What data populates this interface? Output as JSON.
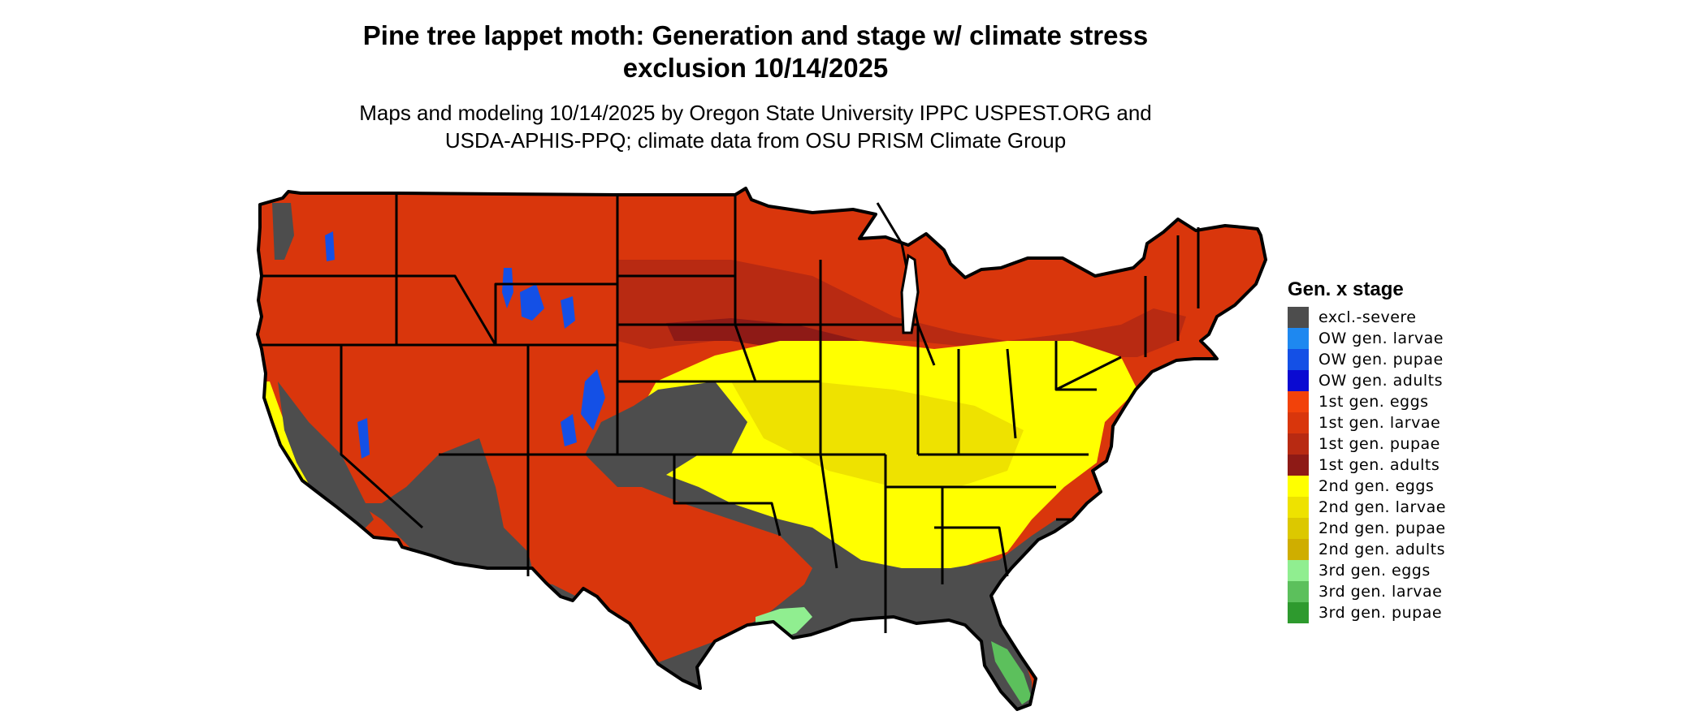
{
  "title": {
    "line1": "Pine tree lappet moth: Generation and stage w/ climate stress",
    "line2": "exclusion 10/14/2025"
  },
  "subtitle": {
    "line1": "Maps and modeling 10/14/2025 by Oregon State University IPPC USPEST.ORG and",
    "line2": "USDA-APHIS-PPQ; climate data from OSU PRISM Climate Group"
  },
  "legend": {
    "title": "Gen. x stage",
    "items": [
      {
        "label": "excl.-severe",
        "color": "#4d4d4d"
      },
      {
        "label": "OW gen. larvae",
        "color": "#1e88f0"
      },
      {
        "label": "OW gen. pupae",
        "color": "#1450e6"
      },
      {
        "label": "OW gen. adults",
        "color": "#0a0ad2"
      },
      {
        "label": "1st gen. eggs",
        "color": "#f2420a"
      },
      {
        "label": "1st gen. larvae",
        "color": "#d9360c"
      },
      {
        "label": "1st gen. pupae",
        "color": "#b82a12"
      },
      {
        "label": "1st gen. adults",
        "color": "#8e1a16"
      },
      {
        "label": "2nd gen. eggs",
        "color": "#ffff00"
      },
      {
        "label": "2nd gen. larvae",
        "color": "#eee200"
      },
      {
        "label": "2nd gen. pupae",
        "color": "#dcc800"
      },
      {
        "label": "2nd gen. adults",
        "color": "#cfae00"
      },
      {
        "label": "3rd gen. eggs",
        "color": "#90ee90"
      },
      {
        "label": "3rd gen. larvae",
        "color": "#5cc05c"
      },
      {
        "label": "3rd gen. pupae",
        "color": "#2e9a2e"
      }
    ]
  },
  "map": {
    "region": "Contiguous United States",
    "boundary_color": "#000000",
    "ocean_color": "#ffffff"
  }
}
